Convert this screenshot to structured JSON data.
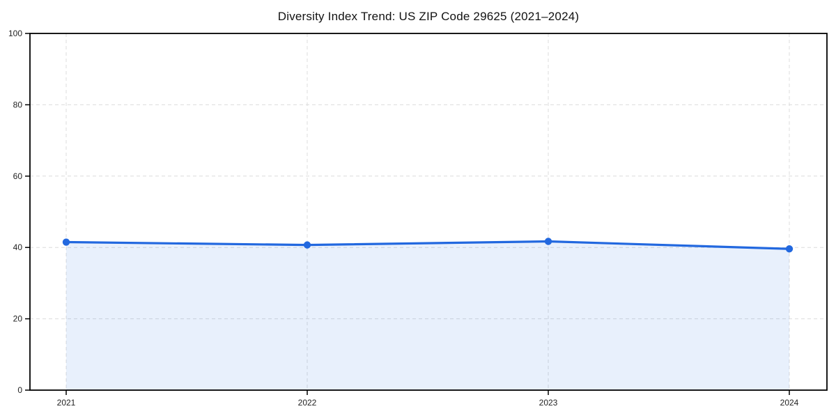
{
  "title": "Diversity Index Trend: US ZIP Code 29625 (2021–2024)",
  "chart_data": {
    "type": "area",
    "title": "Diversity Index Trend: US ZIP Code 29625 (2021–2024)",
    "categories": [
      "2021",
      "2022",
      "2023",
      "2024"
    ],
    "series": [
      {
        "name": "Diversity Index",
        "values": [
          41.5,
          40.7,
          41.7,
          39.6
        ]
      }
    ],
    "xlabel": "",
    "ylabel": "",
    "ylim": [
      0,
      100
    ],
    "yticks": [
      0,
      20,
      40,
      60,
      80,
      100
    ],
    "grid": true,
    "grid_style": "dashed",
    "legend": "none",
    "colors": {
      "line": "#2268df",
      "marker": "#2268df",
      "fill": "rgba(34,104,223,0.10)",
      "grid": "#dcdcdc",
      "axis": "#000000",
      "text": "#222222",
      "background": "#ffffff"
    }
  }
}
